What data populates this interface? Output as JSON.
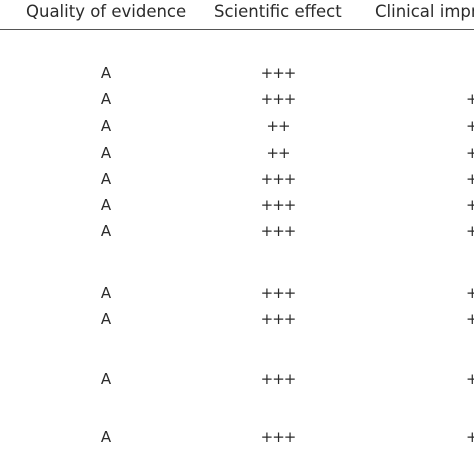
{
  "table": {
    "headers": [
      "Quality of evidence",
      "Scientific effect",
      "Clinical impr"
    ],
    "rows": [
      {
        "quality": "A",
        "effect": "+++",
        "clinical": ""
      },
      {
        "quality": "A",
        "effect": "+++",
        "clinical": "+"
      },
      {
        "quality": "A",
        "effect": "++",
        "clinical": "+"
      },
      {
        "quality": "A",
        "effect": "++",
        "clinical": "+"
      },
      {
        "quality": "A",
        "effect": "+++",
        "clinical": "+"
      },
      {
        "quality": "A",
        "effect": "+++",
        "clinical": "+"
      },
      {
        "quality": "A",
        "effect": "+++",
        "clinical": "+"
      },
      {
        "quality": "A",
        "effect": "+++",
        "clinical": "+"
      },
      {
        "quality": "A",
        "effect": "+++",
        "clinical": "+"
      },
      {
        "quality": "A",
        "effect": "+++",
        "clinical": "+"
      },
      {
        "quality": "A",
        "effect": "+++",
        "clinical": "+"
      }
    ]
  }
}
